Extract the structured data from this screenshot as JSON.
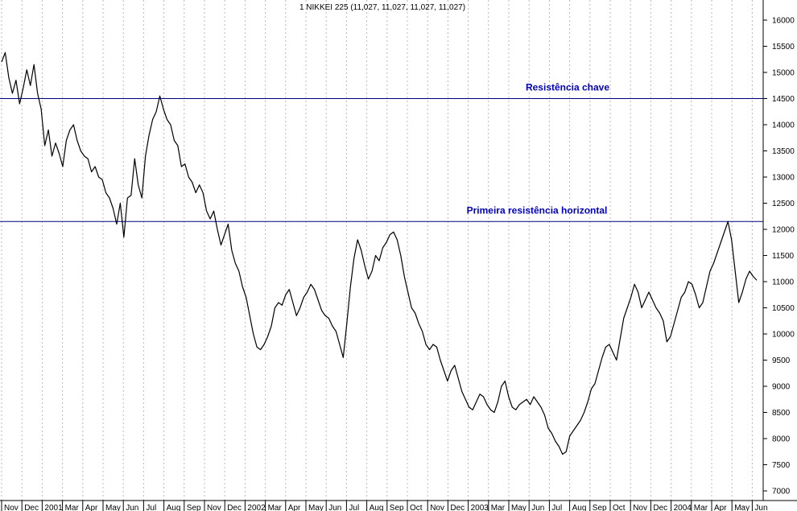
{
  "chart_data": {
    "type": "line",
    "title": "1 NIKKEI 225 (11,027, 11,027, 11,027, 11,027)",
    "xlabel": "",
    "ylabel": "",
    "ylim": [
      6800,
      16400
    ],
    "y_ticks": [
      7000,
      7500,
      8000,
      8500,
      9000,
      9500,
      10000,
      10500,
      11000,
      11500,
      12000,
      12500,
      13000,
      13500,
      14000,
      14500,
      15000,
      15500,
      16000
    ],
    "x_tick_labels": [
      "Nov",
      "Dec",
      "2001",
      "Mar",
      "Apr",
      "May",
      "Jun",
      "Jul",
      "Aug",
      "Sep",
      "Nov",
      "Dec",
      "2002",
      "Mar",
      "Apr",
      "May",
      "Jun",
      "Jul",
      "Aug",
      "Sep",
      "Oct",
      "Nov",
      "Dec",
      "2003",
      "Mar",
      "May",
      "Jun",
      "Jul",
      "Aug",
      "Sep",
      "Oct",
      "Nov",
      "Dec",
      "2004",
      "Mar",
      "Apr",
      "May",
      "Jun"
    ],
    "grid": true,
    "series": [
      {
        "name": "",
        "color": "#000000",
        "values": [
          15200,
          15380,
          14900,
          14600,
          14850,
          14400,
          14700,
          15050,
          14750,
          15150,
          14600,
          14300,
          13600,
          13900,
          13400,
          13650,
          13450,
          13200,
          13700,
          13900,
          14000,
          13700,
          13500,
          13400,
          13350,
          13100,
          13200,
          13000,
          12950,
          12700,
          12600,
          12400,
          12100,
          12500,
          11850,
          12600,
          12650,
          13350,
          12850,
          12600,
          13400,
          13800,
          14100,
          14250,
          14550,
          14300,
          14100,
          14000,
          13700,
          13600,
          13200,
          13250,
          13000,
          12900,
          12700,
          12850,
          12700,
          12350,
          12200,
          12350,
          12000,
          11700,
          11900,
          12100,
          11600,
          11350,
          11200,
          10900,
          10700,
          10350,
          10000,
          9750,
          9700,
          9800,
          9950,
          10150,
          10500,
          10600,
          10550,
          10750,
          10850,
          10600,
          10350,
          10500,
          10700,
          10800,
          10950,
          10850,
          10650,
          10450,
          10350,
          10300,
          10150,
          10050,
          9800,
          9550,
          10200,
          10900,
          11450,
          11800,
          11600,
          11300,
          11050,
          11200,
          11500,
          11400,
          11650,
          11750,
          11900,
          11950,
          11800,
          11500,
          11100,
          10800,
          10500,
          10400,
          10200,
          10050,
          9800,
          9700,
          9800,
          9750,
          9500,
          9300,
          9100,
          9300,
          9400,
          9150,
          8900,
          8750,
          8600,
          8550,
          8700,
          8850,
          8800,
          8650,
          8550,
          8500,
          8700,
          9000,
          9100,
          8800,
          8600,
          8550,
          8650,
          8700,
          8750,
          8650,
          8800,
          8700,
          8600,
          8450,
          8200,
          8100,
          7950,
          7850,
          7700,
          7750,
          8050,
          8150,
          8250,
          8350,
          8500,
          8700,
          8950,
          9050,
          9300,
          9550,
          9750,
          9800,
          9650,
          9500,
          9900,
          10300,
          10500,
          10700,
          10950,
          10800,
          10500,
          10650,
          10800,
          10650,
          10500,
          10400,
          10250,
          9850,
          9950,
          10200,
          10450,
          10700,
          10800,
          11000,
          10950,
          10750,
          10500,
          10600,
          10900,
          11200,
          11350,
          11550,
          11750,
          11950,
          12150,
          11800,
          11200,
          10600,
          10800,
          11050,
          11200,
          11100,
          11027
        ]
      }
    ],
    "reference_lines": [
      {
        "label": "Resistência chave",
        "value": 14500,
        "color": "#000080"
      },
      {
        "label": "Primeira resistência horizontal",
        "value": 12150,
        "color": "#000080"
      }
    ]
  }
}
